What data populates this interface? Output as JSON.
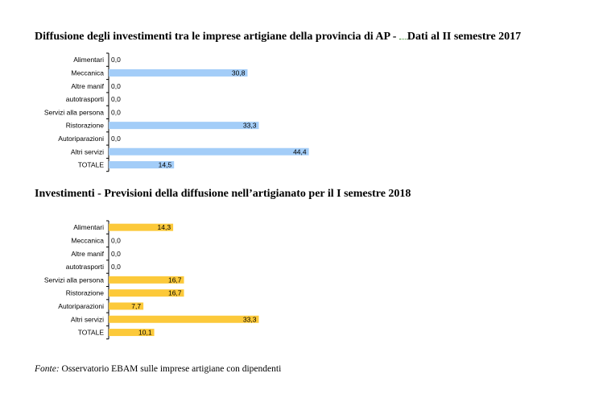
{
  "chart_data": [
    {
      "type": "bar",
      "orientation": "horizontal",
      "title": "Diffusione degli investimenti tra le imprese artigiane della provincia di AP - Dati al II semestre 2017",
      "categories": [
        "Alimentari",
        "Meccanica",
        "Altre manif",
        "autotrasporti",
        "Servizi alla persona",
        "Ristorazione",
        "Autoriparazioni",
        "Altri servizi",
        "TOTALE"
      ],
      "values": [
        0.0,
        30.8,
        0.0,
        0.0,
        0.0,
        33.3,
        0.0,
        44.4,
        14.5
      ],
      "value_labels": [
        "0,0",
        "30,8",
        "0,0",
        "0,0",
        "0,0",
        "33,3",
        "0,0",
        "44,4",
        "14,5"
      ],
      "color": "#a3cdf8",
      "xlim": [
        0,
        100
      ]
    },
    {
      "type": "bar",
      "orientation": "horizontal",
      "title": "Investimenti - Previsioni della diffusione nell’artigianato per il I semestre 2018",
      "categories": [
        "Alimentari",
        "Meccanica",
        "Altre manif",
        "autotrasporti",
        "Servizi alla persona",
        "Ristorazione",
        "Autoriparazioni",
        "Altri servizi",
        "TOTALE"
      ],
      "values": [
        14.3,
        0.0,
        0.0,
        0.0,
        16.7,
        16.7,
        7.7,
        33.3,
        10.1
      ],
      "value_labels": [
        "14,3",
        "0,0",
        "0,0",
        "0,0",
        "16,7",
        "16,7",
        "7,7",
        "33,3",
        "10,1"
      ],
      "color": "#fcc93a",
      "xlim": [
        0,
        100
      ]
    }
  ],
  "header": {
    "title1_part1": "Diffusione degli investimenti tra le imprese artigiane della provincia di AP -",
    "title1_part2": "Dati al II semestre 2017",
    "title2": "Investimenti - Previsioni della diffusione nell’artigianato per il I semestre 2018"
  },
  "footer": {
    "label": "Fonte:",
    "text": " Osservatorio EBAM sulle imprese artigiane con dipendenti"
  }
}
